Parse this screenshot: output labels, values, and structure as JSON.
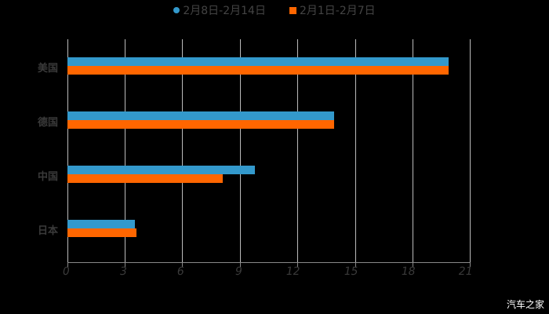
{
  "legend": {
    "series1_label": "2月8日-2月14日",
    "series2_label": "2月1日-2月7日"
  },
  "colors": {
    "series1": "#3399cc",
    "series2": "#ff6600",
    "grid": "#bbbbbb",
    "background": "#000000"
  },
  "axis": {
    "ticks": [
      "0",
      "3",
      "6",
      "9",
      "12",
      "15",
      "18",
      "21"
    ]
  },
  "categories": [
    "美国",
    "德国",
    "中国",
    "日本"
  ],
  "watermark": "汽车之家",
  "chart_data": {
    "type": "bar",
    "orientation": "horizontal",
    "title": "",
    "categories": [
      "美国",
      "德国",
      "中国",
      "日本"
    ],
    "series": [
      {
        "name": "2月8日-2月14日",
        "color": "#3399cc",
        "values": [
          19.9,
          13.9,
          9.8,
          3.5
        ]
      },
      {
        "name": "2月1日-2月7日",
        "color": "#ff6600",
        "values": [
          19.9,
          13.9,
          8.1,
          3.6
        ]
      }
    ],
    "xlabel": "",
    "ylabel": "",
    "xlim": [
      0,
      21
    ],
    "xticks": [
      0,
      3,
      6,
      9,
      12,
      15,
      18,
      21
    ],
    "grid": true,
    "legend_position": "top"
  }
}
